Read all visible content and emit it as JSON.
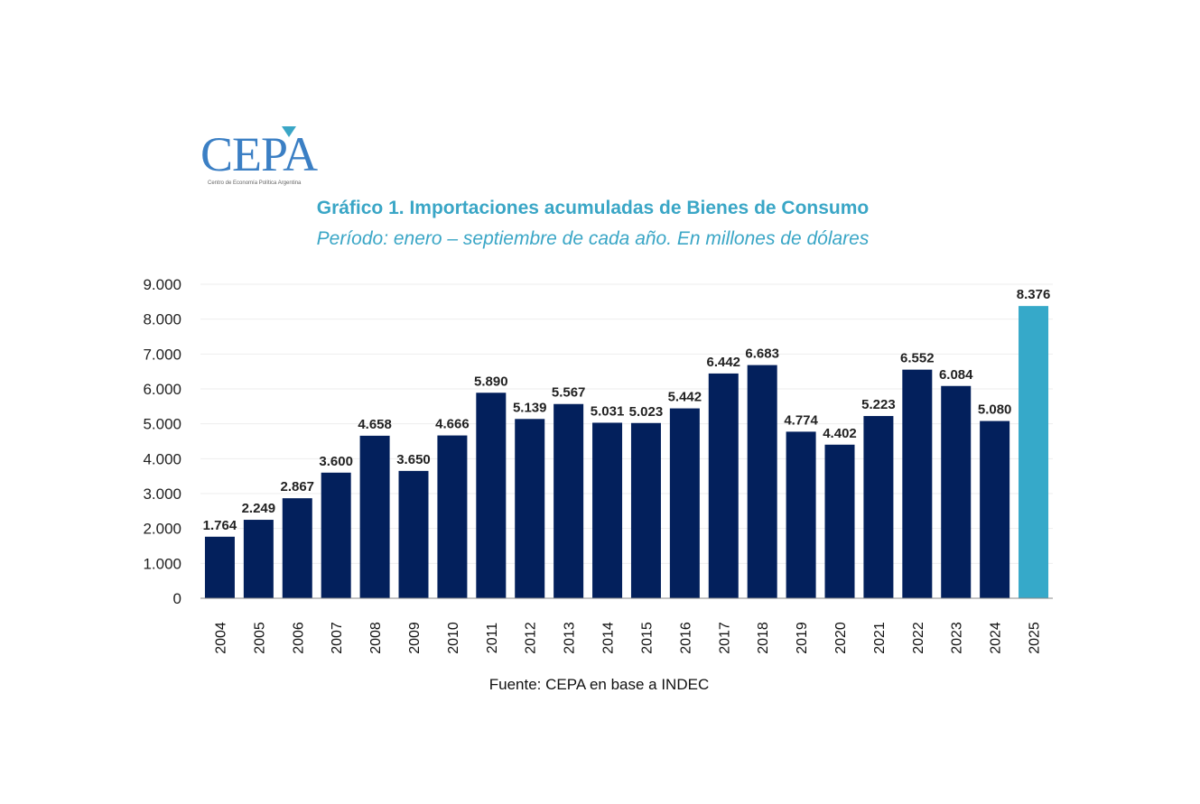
{
  "logo": {
    "text": "CEPA",
    "subtext": "Centro de Economía Política Argentina"
  },
  "title": "Gráfico 1. Importaciones acumuladas de Bienes de Consumo",
  "subtitle": "Período: enero – septiembre de cada año. En millones de dólares",
  "source": "Fuente: CEPA en base a INDEC",
  "colors": {
    "bar": "#03205c",
    "highlight": "#36a9c9",
    "title": "#3aa6c6"
  },
  "chart_data": {
    "type": "bar",
    "title": "Gráfico 1. Importaciones acumuladas de Bienes de Consumo",
    "subtitle": "Período: enero – septiembre de cada año. En millones de dólares",
    "categories": [
      "2004",
      "2005",
      "2006",
      "2007",
      "2008",
      "2009",
      "2010",
      "2011",
      "2012",
      "2013",
      "2014",
      "2015",
      "2016",
      "2017",
      "2018",
      "2019",
      "2020",
      "2021",
      "2022",
      "2023",
      "2024",
      "2025"
    ],
    "values": [
      1764,
      2249,
      2867,
      3600,
      4658,
      3650,
      4666,
      5890,
      5139,
      5567,
      5031,
      5023,
      5442,
      6442,
      6683,
      4774,
      4402,
      5223,
      6552,
      6084,
      5080,
      8376
    ],
    "data_labels": [
      "1.764",
      "2.249",
      "2.867",
      "3.600",
      "4.658",
      "3.650",
      "4.666",
      "5.890",
      "5.139",
      "5.567",
      "5.031",
      "5.023",
      "5.442",
      "6.442",
      "6.683",
      "4.774",
      "4.402",
      "5.223",
      "6.552",
      "6.084",
      "5.080",
      "8.376"
    ],
    "highlighted_category": "2025",
    "ylim": [
      0,
      9000
    ],
    "yticks": [
      "0",
      "1.000",
      "2.000",
      "3.000",
      "4.000",
      "5.000",
      "6.000",
      "7.000",
      "8.000",
      "9.000"
    ],
    "xlabel": "",
    "ylabel": "",
    "grid": true,
    "legend": "none"
  }
}
